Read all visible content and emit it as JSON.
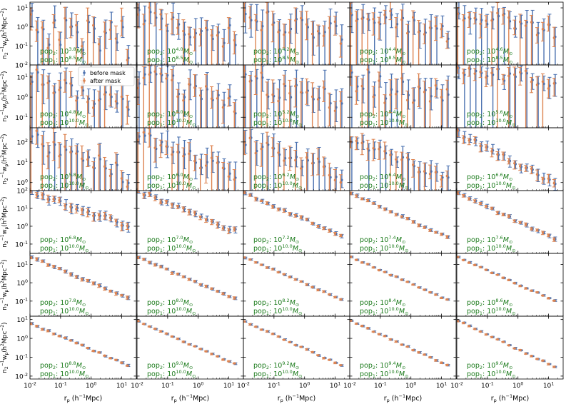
{
  "chart_data": {
    "type": "scatter",
    "layout": "6 rows x 5 columns grid of log-log panels, shared axes",
    "xlabel": "r_p (h^-1 Mpc)",
    "ylabel": "n_2^-1 w_p (h^-2 Mpc^-2)",
    "xscale": "log",
    "yscale": "log",
    "xlim": [
      0.01,
      30
    ],
    "x_tick_labels": [
      "10^-2",
      "10^-1",
      "10^0",
      "10^1"
    ],
    "legend": {
      "location": "upper-left of panel (row 2, col 1)",
      "entries": [
        "before mask",
        "after mask"
      ]
    },
    "series_colors": {
      "before mask": "#4c72b0",
      "after mask": "#dd8452"
    },
    "rows": [
      {
        "ylim": [
          0.01,
          20
        ],
        "y_tick_labels": [
          "10^-2",
          "10^-1",
          "10^0",
          "10^1"
        ]
      },
      {
        "ylim": [
          0.03,
          40
        ],
        "y_tick_labels": [
          "10^-1",
          "10^0",
          "10^1"
        ]
      },
      {
        "ylim": [
          0.4,
          500
        ],
        "y_tick_labels": [
          "10^0",
          "10^1",
          "10^2"
        ]
      },
      {
        "ylim": [
          0.03,
          100
        ],
        "y_tick_labels": [
          "10^-1",
          "10^0",
          "10^1",
          "10^2"
        ]
      },
      {
        "ylim": [
          0.015,
          40
        ],
        "y_tick_labels": [
          "10^-1",
          "10^0",
          "10^1"
        ]
      },
      {
        "ylim": [
          0.007,
          15
        ],
        "y_tick_labels": [
          "10^-2",
          "10^-1",
          "10^0",
          "10^1"
        ]
      }
    ],
    "panels": [
      {
        "pop2": "10^3.8",
        "pop1": "10^8.5",
        "start": 1.2,
        "slope": -0.25,
        "noise": 0.95,
        "err": 0.85,
        "seed": 11
      },
      {
        "pop2": "10^4.0",
        "pop1": "10^8.5",
        "start": 4,
        "slope": -0.35,
        "noise": 0.6,
        "err": 0.85,
        "seed": 12
      },
      {
        "pop2": "10^4.2",
        "pop1": "10^8.5",
        "start": 4,
        "slope": -0.3,
        "noise": 0.5,
        "err": 0.9,
        "seed": 13
      },
      {
        "pop2": "10^4.4",
        "pop1": "10^8.5",
        "start": 5,
        "slope": -0.35,
        "noise": 0.4,
        "err": 0.8,
        "seed": 14
      },
      {
        "pop2": "10^4.6",
        "pop1": "10^8.5",
        "start": 8,
        "slope": -0.4,
        "noise": 0.4,
        "err": 0.7,
        "seed": 15
      },
      {
        "pop2": "10^4.8",
        "pop1": "10^10.0",
        "start": 9,
        "slope": -0.45,
        "noise": 0.4,
        "err": 0.8,
        "seed": 21
      },
      {
        "pop2": "10^5.0",
        "pop1": "10^10.0",
        "start": 12,
        "slope": -0.45,
        "noise": 0.5,
        "err": 0.85,
        "seed": 22
      },
      {
        "pop2": "10^5.2",
        "pop1": "10^10.0",
        "start": 5,
        "slope": -0.3,
        "noise": 0.5,
        "err": 0.95,
        "seed": 23
      },
      {
        "pop2": "10^5.4",
        "pop1": "10^10.0",
        "start": 8,
        "slope": -0.35,
        "noise": 0.6,
        "err": 0.95,
        "seed": 24
      },
      {
        "pop2": "10^5.6",
        "pop1": "10^10.0",
        "start": 25,
        "slope": -0.2,
        "noise": 0.3,
        "err": 0.6,
        "seed": 25
      },
      {
        "pop2": "10^5.8",
        "pop1": "10^10.0",
        "start": 150,
        "slope": -0.6,
        "noise": 0.4,
        "err": 0.85,
        "seed": 31
      },
      {
        "pop2": "10^6.0",
        "pop1": "10^10.0",
        "start": 200,
        "slope": -0.6,
        "noise": 0.35,
        "err": 0.8,
        "seed": 32
      },
      {
        "pop2": "10^6.2",
        "pop1": "10^10.0",
        "start": 100,
        "slope": -0.55,
        "noise": 0.35,
        "err": 0.8,
        "seed": 33
      },
      {
        "pop2": "10^6.4",
        "pop1": "10^10.0",
        "start": 150,
        "slope": -0.65,
        "noise": 0.25,
        "err": 0.6,
        "seed": 34
      },
      {
        "pop2": "10^6.6",
        "pop1": "10^10.0",
        "start": 300,
        "slope": -0.8,
        "noise": 0.1,
        "err": 0.3,
        "seed": 35
      },
      {
        "pop2": "10^6.8",
        "pop1": "10^10.0",
        "start": 80,
        "slope": -0.6,
        "noise": 0.15,
        "err": 0.3,
        "seed": 41
      },
      {
        "pop2": "10^7.0",
        "pop1": "10^10.0",
        "start": 90,
        "slope": -0.7,
        "noise": 0.1,
        "err": 0.2,
        "seed": 42
      },
      {
        "pop2": "10^7.2",
        "pop1": "10^10.0",
        "start": 70,
        "slope": -0.75,
        "noise": 0.05,
        "err": 0.12,
        "seed": 43
      },
      {
        "pop2": "10^7.4",
        "pop1": "10^10.0",
        "start": 70,
        "slope": -0.78,
        "noise": 0.04,
        "err": 0.1,
        "seed": 44
      },
      {
        "pop2": "10^7.6",
        "pop1": "10^10.0",
        "start": 75,
        "slope": -0.82,
        "noise": 0.05,
        "err": 0.12,
        "seed": 45
      },
      {
        "pop2": "10^7.8",
        "pop1": "10^10.0",
        "start": 25,
        "slope": -0.7,
        "noise": 0.04,
        "err": 0.1,
        "seed": 51
      },
      {
        "pop2": "10^8.0",
        "pop1": "10^10.0",
        "start": 25,
        "slope": -0.72,
        "noise": 0.04,
        "err": 0.08,
        "seed": 52
      },
      {
        "pop2": "10^8.2",
        "pop1": "10^10.0",
        "start": 25,
        "slope": -0.73,
        "noise": 0.03,
        "err": 0.06,
        "seed": 53
      },
      {
        "pop2": "10^8.4",
        "pop1": "10^10.0",
        "start": 25,
        "slope": -0.74,
        "noise": 0.03,
        "err": 0.05,
        "seed": 54
      },
      {
        "pop2": "10^8.6",
        "pop1": "10^10.0",
        "start": 25,
        "slope": -0.75,
        "noise": 0.03,
        "err": 0.05,
        "seed": 55
      },
      {
        "pop2": "10^8.8",
        "pop1": "10^10.0",
        "start": 6,
        "slope": -0.7,
        "noise": 0.03,
        "err": 0.06,
        "seed": 61
      },
      {
        "pop2": "10^9.0",
        "pop1": "10^10.0",
        "start": 8,
        "slope": -0.72,
        "noise": 0.03,
        "err": 0.05,
        "seed": 62
      },
      {
        "pop2": "10^9.2",
        "pop1": "10^10.0",
        "start": 8,
        "slope": -0.74,
        "noise": 0.03,
        "err": 0.05,
        "seed": 63
      },
      {
        "pop2": "10^9.4",
        "pop1": "10^10.0",
        "start": 9,
        "slope": -0.76,
        "noise": 0.03,
        "err": 0.05,
        "seed": 64
      },
      {
        "pop2": "10^9.6",
        "pop1": "10^10.0",
        "start": 9,
        "slope": -0.78,
        "noise": 0.03,
        "err": 0.05,
        "seed": 65
      }
    ]
  }
}
